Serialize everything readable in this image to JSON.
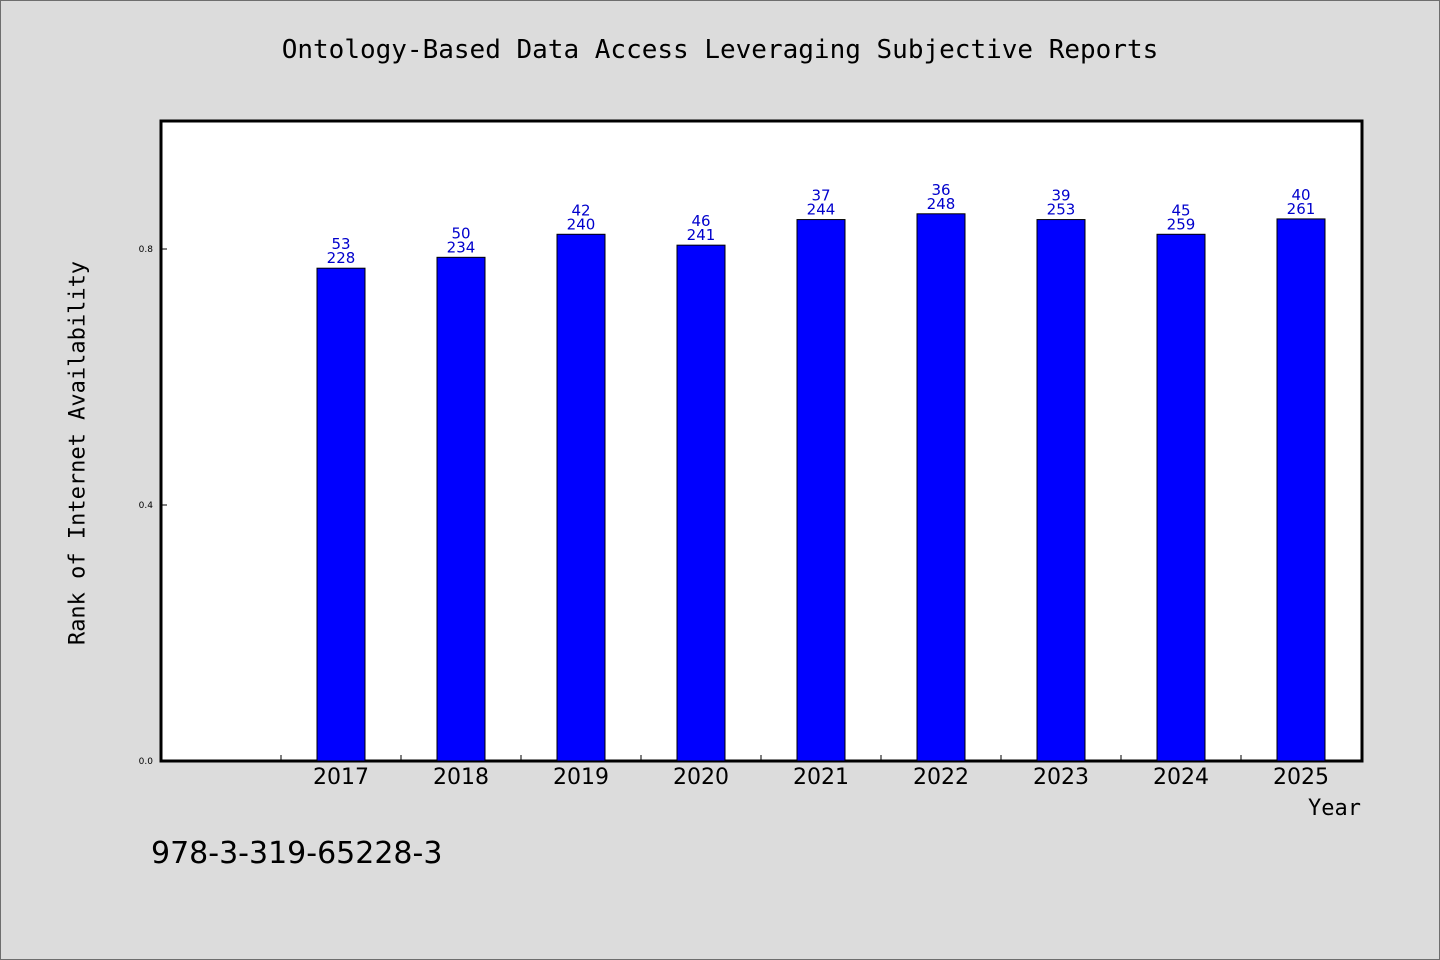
{
  "chart_data": {
    "type": "bar",
    "title": "Ontology-Based Data Access Leveraging Subjective Reports",
    "xlabel": "Year",
    "ylabel": "Rank of Internet Availability",
    "categories": [
      "2017",
      "2018",
      "2019",
      "2020",
      "2021",
      "2022",
      "2023",
      "2024",
      "2025"
    ],
    "series": [
      {
        "values": [
          0.77,
          0.787,
          0.823,
          0.806,
          0.846,
          0.855,
          0.846,
          0.823,
          0.847
        ]
      }
    ],
    "bar_labels": [
      [
        "53",
        "228"
      ],
      [
        "50",
        "234"
      ],
      [
        "42",
        "240"
      ],
      [
        "46",
        "241"
      ],
      [
        "37",
        "244"
      ],
      [
        "36",
        "248"
      ],
      [
        "39",
        "253"
      ],
      [
        "45",
        "259"
      ],
      [
        "40",
        "261"
      ]
    ],
    "ylim": [
      0,
      1.0
    ],
    "yticks": [
      "0.0",
      "0.4",
      "0.8"
    ],
    "grid": false,
    "bar_color": "#0000ff",
    "label_color": "#0000cc"
  },
  "footer": {
    "isbn": "978-3-319-65228-3"
  }
}
